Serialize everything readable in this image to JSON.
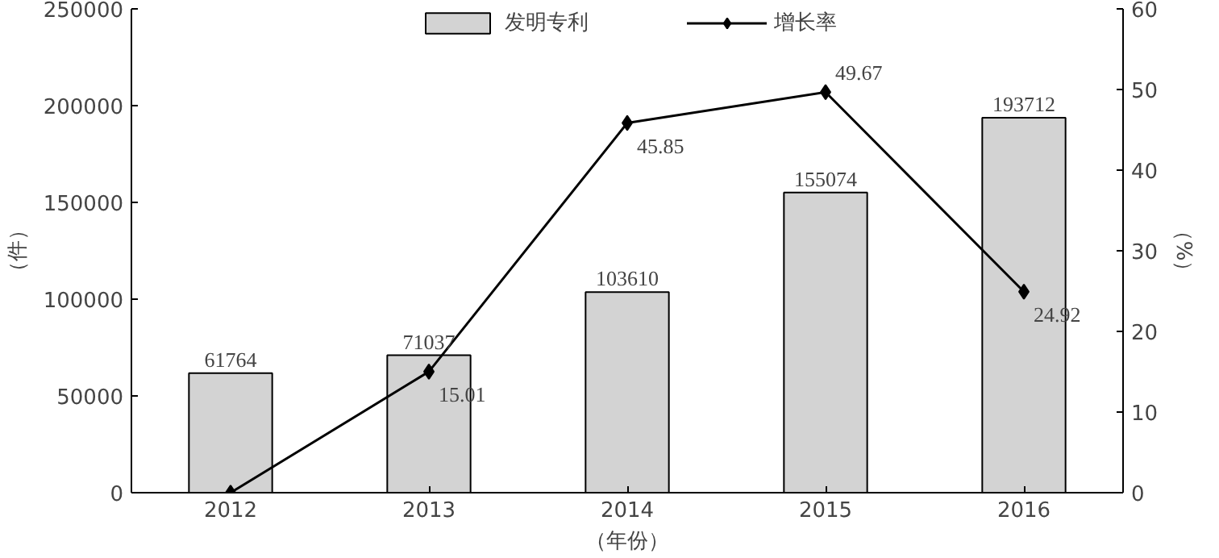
{
  "chart_data": {
    "type": "bar",
    "categories": [
      "2012",
      "2013",
      "2014",
      "2015",
      "2016"
    ],
    "xlabel": "（年份）",
    "ylabel": "（件）",
    "y2label": "（%）",
    "series": [
      {
        "name": "发明专利",
        "color": "#d3d3d3",
        "values": [
          61764,
          71037,
          103610,
          155074,
          193712
        ],
        "value_labels": [
          "61764",
          "71037",
          "103610",
          "155074",
          "193712"
        ]
      },
      {
        "name": "增长率",
        "type": "line",
        "axis": "y2",
        "color": "#000000",
        "marker": "diamond",
        "values": [
          0,
          15.01,
          45.85,
          49.67,
          24.92
        ],
        "value_labels": [
          null,
          "15.01",
          "45.85",
          "49.67",
          "24.92"
        ]
      }
    ],
    "ylim": [
      0,
      250000
    ],
    "yticks": [
      0,
      50000,
      100000,
      150000,
      200000,
      250000
    ],
    "y2lim": [
      0,
      60
    ],
    "y2ticks": [
      0,
      10,
      20,
      30,
      40,
      50,
      60
    ],
    "grid": false,
    "legend": "top"
  }
}
